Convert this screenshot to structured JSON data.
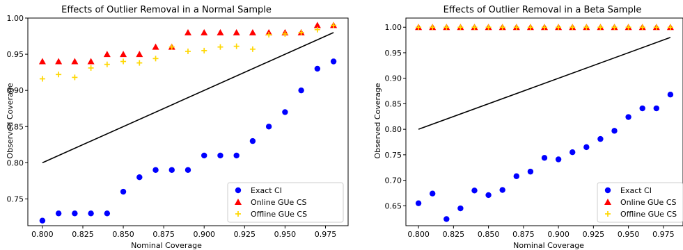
{
  "chart_data": [
    {
      "type": "scatter",
      "title": "Effects of Outlier Removal in a Normal Sample",
      "xlabel": "Nominal Coverage",
      "ylabel": "Observed Coverage",
      "xlim": [
        0.791,
        0.989
      ],
      "ylim": [
        0.713,
        1.0
      ],
      "xticks": [
        "0.800",
        "0.825",
        "0.850",
        "0.875",
        "0.900",
        "0.925",
        "0.950",
        "0.975"
      ],
      "yticks": [
        "0.75",
        "0.80",
        "0.85",
        "0.90",
        "0.95",
        "1.00"
      ],
      "grid": false,
      "legend_position": "lower-right",
      "reference_line": {
        "x": [
          0.8,
          0.98
        ],
        "y": [
          0.8,
          0.98
        ],
        "color": "#000000"
      },
      "series": [
        {
          "name": "Exact CI",
          "marker": "circle",
          "color": "#0000ff",
          "x": [
            0.8,
            0.81,
            0.82,
            0.83,
            0.84,
            0.85,
            0.86,
            0.87,
            0.88,
            0.89,
            0.9,
            0.91,
            0.92,
            0.93,
            0.94,
            0.95,
            0.96,
            0.97,
            0.98
          ],
          "y": [
            0.72,
            0.73,
            0.73,
            0.73,
            0.73,
            0.76,
            0.78,
            0.79,
            0.79,
            0.79,
            0.81,
            0.81,
            0.81,
            0.83,
            0.85,
            0.87,
            0.9,
            0.93,
            0.94
          ]
        },
        {
          "name": "Online GUe CS",
          "marker": "triangle",
          "color": "#ff0000",
          "x": [
            0.8,
            0.81,
            0.82,
            0.83,
            0.84,
            0.85,
            0.86,
            0.87,
            0.88,
            0.89,
            0.9,
            0.91,
            0.92,
            0.93,
            0.94,
            0.95,
            0.96,
            0.97,
            0.98
          ],
          "y": [
            0.94,
            0.94,
            0.94,
            0.94,
            0.95,
            0.95,
            0.95,
            0.96,
            0.96,
            0.98,
            0.98,
            0.98,
            0.98,
            0.98,
            0.98,
            0.98,
            0.98,
            0.99,
            0.99
          ]
        },
        {
          "name": "Offline GUe CS",
          "marker": "plus",
          "color": "#ffd700",
          "x": [
            0.8,
            0.81,
            0.82,
            0.83,
            0.84,
            0.85,
            0.86,
            0.87,
            0.88,
            0.89,
            0.9,
            0.91,
            0.92,
            0.93,
            0.94,
            0.95,
            0.96,
            0.97,
            0.98
          ],
          "y": [
            0.916,
            0.922,
            0.918,
            0.931,
            0.936,
            0.94,
            0.938,
            0.944,
            0.96,
            0.954,
            0.955,
            0.96,
            0.961,
            0.957,
            0.977,
            0.978,
            0.98,
            0.984,
            0.99
          ]
        }
      ]
    },
    {
      "type": "scatter",
      "title": "Effects of Outlier Removal in a Beta Sample",
      "xlabel": "Nominal Coverage",
      "ylabel": "Observed Coverage",
      "xlim": [
        0.791,
        0.989
      ],
      "ylim": [
        0.611,
        1.018
      ],
      "xticks": [
        "0.800",
        "0.825",
        "0.850",
        "0.875",
        "0.900",
        "0.925",
        "0.950",
        "0.975"
      ],
      "yticks": [
        "0.65",
        "0.70",
        "0.75",
        "0.80",
        "0.85",
        "0.90",
        "0.95",
        "1.00"
      ],
      "grid": false,
      "legend_position": "lower-right",
      "reference_line": {
        "x": [
          0.8,
          0.98
        ],
        "y": [
          0.8,
          0.98
        ],
        "color": "#000000"
      },
      "series": [
        {
          "name": "Exact CI",
          "marker": "circle",
          "color": "#0000ff",
          "x": [
            0.8,
            0.81,
            0.82,
            0.83,
            0.84,
            0.85,
            0.86,
            0.87,
            0.88,
            0.89,
            0.9,
            0.91,
            0.92,
            0.93,
            0.94,
            0.95,
            0.96,
            0.97,
            0.98
          ],
          "y": [
            0.655,
            0.674,
            0.624,
            0.645,
            0.68,
            0.671,
            0.681,
            0.708,
            0.717,
            0.744,
            0.741,
            0.755,
            0.765,
            0.781,
            0.797,
            0.824,
            0.841,
            0.841,
            0.868
          ]
        },
        {
          "name": "Online GUe CS",
          "marker": "triangle",
          "color": "#ff0000",
          "x": [
            0.8,
            0.81,
            0.82,
            0.83,
            0.84,
            0.85,
            0.86,
            0.87,
            0.88,
            0.89,
            0.9,
            0.91,
            0.92,
            0.93,
            0.94,
            0.95,
            0.96,
            0.97,
            0.98
          ],
          "y": [
            1.0,
            1.0,
            1.0,
            1.0,
            1.0,
            1.0,
            1.0,
            1.0,
            1.0,
            1.0,
            1.0,
            1.0,
            1.0,
            1.0,
            1.0,
            1.0,
            1.0,
            1.0,
            1.0
          ]
        },
        {
          "name": "Offline GUe CS",
          "marker": "plus",
          "color": "#ffd700",
          "x": [
            0.8,
            0.81,
            0.82,
            0.83,
            0.84,
            0.85,
            0.86,
            0.87,
            0.88,
            0.89,
            0.9,
            0.91,
            0.92,
            0.93,
            0.94,
            0.95,
            0.96,
            0.97,
            0.98
          ],
          "y": [
            1.0,
            1.0,
            1.0,
            1.0,
            1.0,
            1.0,
            1.0,
            1.0,
            1.0,
            1.0,
            1.0,
            1.0,
            1.0,
            1.0,
            1.0,
            1.0,
            1.0,
            1.0,
            1.0
          ]
        }
      ]
    }
  ]
}
